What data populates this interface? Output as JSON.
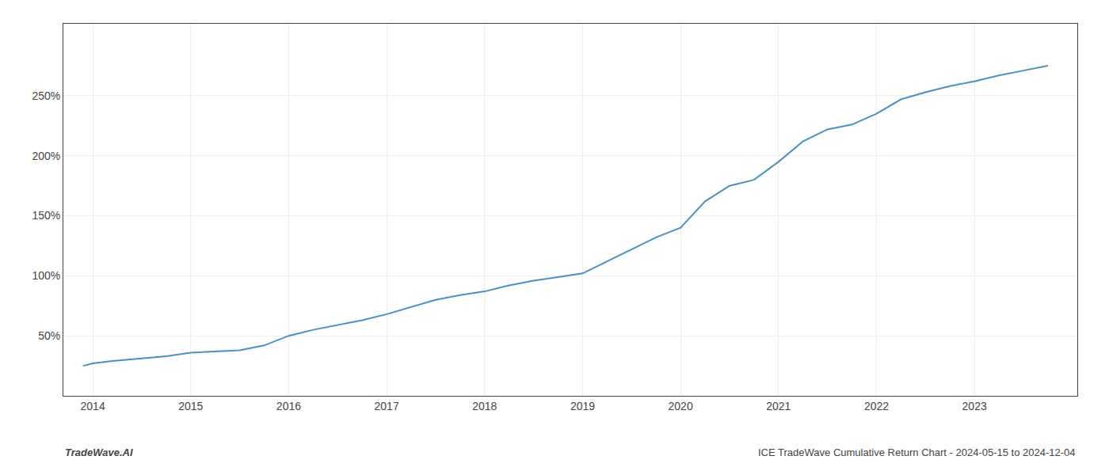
{
  "chart_data": {
    "type": "line",
    "x": [
      2013.9,
      2014.0,
      2014.2,
      2014.5,
      2014.75,
      2015.0,
      2015.25,
      2015.5,
      2015.75,
      2016.0,
      2016.25,
      2016.5,
      2016.75,
      2017.0,
      2017.25,
      2017.5,
      2017.75,
      2018.0,
      2018.25,
      2018.5,
      2018.75,
      2019.0,
      2019.25,
      2019.5,
      2019.75,
      2020.0,
      2020.25,
      2020.5,
      2020.75,
      2021.0,
      2021.25,
      2021.5,
      2021.75,
      2022.0,
      2022.25,
      2022.5,
      2022.75,
      2023.0,
      2023.25,
      2023.5,
      2023.75
    ],
    "values": [
      25,
      27,
      29,
      31,
      33,
      36,
      37,
      38,
      42,
      50,
      55,
      59,
      63,
      68,
      74,
      80,
      84,
      87,
      92,
      96,
      99,
      102,
      112,
      122,
      132,
      140,
      162,
      175,
      180,
      195,
      212,
      222,
      226,
      235,
      247,
      253,
      258,
      262,
      267,
      271,
      275
    ],
    "color": "#4a90c4",
    "xlim": [
      2013.7,
      2024.05
    ],
    "xticks": [
      2014,
      2015,
      2016,
      2017,
      2018,
      2019,
      2020,
      2021,
      2022,
      2023
    ],
    "ylim": [
      0,
      310
    ],
    "yticks": [
      {
        "value": 50,
        "label": "50%"
      },
      {
        "value": 100,
        "label": "100%"
      },
      {
        "value": 150,
        "label": "150%"
      },
      {
        "value": 200,
        "label": "200%"
      },
      {
        "value": 250,
        "label": "250%"
      }
    ],
    "grid": true,
    "annotations": [
      "TradeWave.AI",
      "ICE TradeWave Cumulative Return Chart - 2024-05-15 to 2024-12-04"
    ]
  }
}
